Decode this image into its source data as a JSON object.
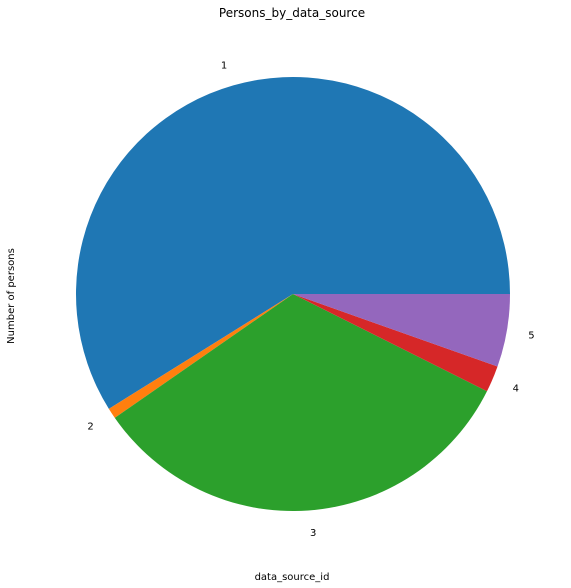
{
  "chart_data": {
    "type": "pie",
    "title": "Persons_by_data_source",
    "xlabel": "data_source_id",
    "ylabel": "Number of persons",
    "legend": false,
    "grid": false,
    "labels": [
      "1",
      "2",
      "3",
      "4",
      "5"
    ],
    "values": [
      59.7,
      0.8,
      33.4,
      2.0,
      5.5
    ],
    "colors": [
      "#1f77b4",
      "#ff7f0e",
      "#2ca02c",
      "#d62728",
      "#9467bd"
    ]
  }
}
